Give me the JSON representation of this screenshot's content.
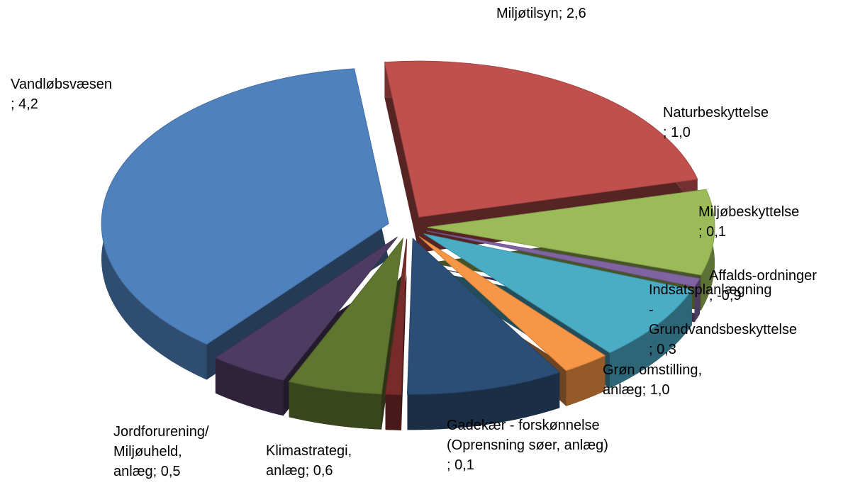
{
  "chart_data": {
    "type": "pie",
    "categories": [
      "Miljøtilsyn",
      "Naturbeskyttelse",
      "Miljøbeskyttelse",
      "Affalds-ordninger",
      "Indsatsplanlægning - Grundvandsbeskyttelse",
      "Grøn omstilling, anlæg",
      "Gadekær - forskønnelse (Oprensning søer, anlæg)",
      "Klimastrategi, anlæg",
      "Jordforurening/ Miljøuheld, anlæg",
      "Vandløbsvæsen"
    ],
    "values": [
      2.6,
      1.0,
      0.1,
      -0.9,
      0.3,
      1.0,
      0.1,
      0.6,
      0.5,
      4.2
    ],
    "value_labels": [
      "2,6",
      "1,0",
      "0,1",
      "-0,9",
      "0,3",
      "1,0",
      "0,1",
      "0,6",
      "0,5",
      "4,2"
    ],
    "label_separator": "; ",
    "colors": [
      "#c0504d",
      "#9bbb59",
      "#8064a2",
      "#4bacc6",
      "#f79646",
      "#2c4d75",
      "#772c2a",
      "#5f7530",
      "#4d3b62",
      "#4f81bd"
    ]
  }
}
